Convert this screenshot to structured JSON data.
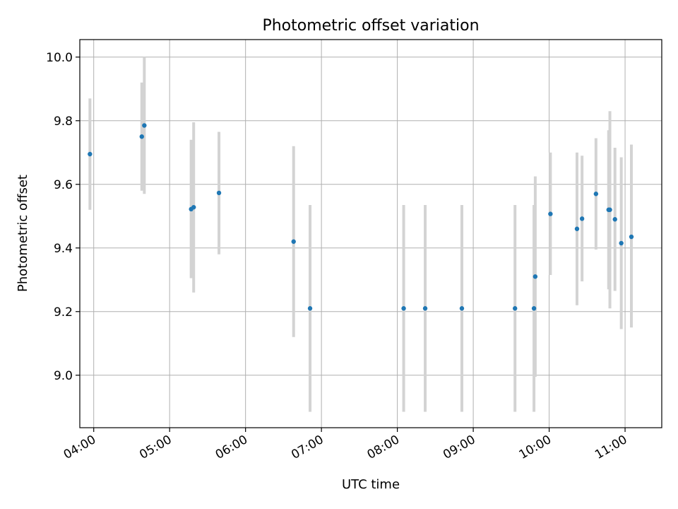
{
  "chart_data": {
    "type": "scatter",
    "title": "Photometric offset variation",
    "xlabel": "UTC time",
    "ylabel": "Photometric offset",
    "x_type": "time",
    "xlim": [
      "03:49",
      "11:29"
    ],
    "ylim": [
      8.835,
      10.055
    ],
    "x_ticks": [
      "04:00",
      "05:00",
      "06:00",
      "07:00",
      "08:00",
      "09:00",
      "10:00",
      "11:00"
    ],
    "y_ticks": [
      "9.0",
      "9.2",
      "9.4",
      "9.6",
      "9.8",
      "10.0"
    ],
    "grid": true,
    "marker_color": "#1f77b4",
    "errorbar_color": "#d3d3d3",
    "points": [
      {
        "x": "03:57",
        "y": 9.695,
        "yerr_low": 9.52,
        "yerr_high": 9.87
      },
      {
        "x": "04:38",
        "y": 9.75,
        "yerr_low": 9.58,
        "yerr_high": 9.92
      },
      {
        "x": "04:40",
        "y": 9.785,
        "yerr_low": 9.57,
        "yerr_high": 10.0
      },
      {
        "x": "05:17",
        "y": 9.522,
        "yerr_low": 9.305,
        "yerr_high": 9.74
      },
      {
        "x": "05:19",
        "y": 9.528,
        "yerr_low": 9.26,
        "yerr_high": 9.795
      },
      {
        "x": "05:39",
        "y": 9.573,
        "yerr_low": 9.38,
        "yerr_high": 9.765
      },
      {
        "x": "06:38",
        "y": 9.42,
        "yerr_low": 9.12,
        "yerr_high": 9.72
      },
      {
        "x": "06:51",
        "y": 9.21,
        "yerr_low": 8.885,
        "yerr_high": 9.535
      },
      {
        "x": "08:05",
        "y": 9.21,
        "yerr_low": 8.885,
        "yerr_high": 9.535
      },
      {
        "x": "08:22",
        "y": 9.21,
        "yerr_low": 8.885,
        "yerr_high": 9.535
      },
      {
        "x": "08:51",
        "y": 9.21,
        "yerr_low": 8.885,
        "yerr_high": 9.535
      },
      {
        "x": "09:33",
        "y": 9.21,
        "yerr_low": 8.885,
        "yerr_high": 9.535
      },
      {
        "x": "09:48",
        "y": 9.21,
        "yerr_low": 8.885,
        "yerr_high": 9.535
      },
      {
        "x": "09:49",
        "y": 9.31,
        "yerr_low": 8.995,
        "yerr_high": 9.625
      },
      {
        "x": "10:01",
        "y": 9.507,
        "yerr_low": 9.315,
        "yerr_high": 9.7
      },
      {
        "x": "10:22",
        "y": 9.46,
        "yerr_low": 9.22,
        "yerr_high": 9.7
      },
      {
        "x": "10:26",
        "y": 9.492,
        "yerr_low": 9.295,
        "yerr_high": 9.69
      },
      {
        "x": "10:37",
        "y": 9.57,
        "yerr_low": 9.395,
        "yerr_high": 9.745
      },
      {
        "x": "10:47",
        "y": 9.52,
        "yerr_low": 9.27,
        "yerr_high": 9.77
      },
      {
        "x": "10:48",
        "y": 9.52,
        "yerr_low": 9.21,
        "yerr_high": 9.83
      },
      {
        "x": "10:52",
        "y": 9.49,
        "yerr_low": 9.265,
        "yerr_high": 9.715
      },
      {
        "x": "10:57",
        "y": 9.415,
        "yerr_low": 9.145,
        "yerr_high": 9.685
      },
      {
        "x": "11:05",
        "y": 9.435,
        "yerr_low": 9.15,
        "yerr_high": 9.725
      }
    ]
  }
}
